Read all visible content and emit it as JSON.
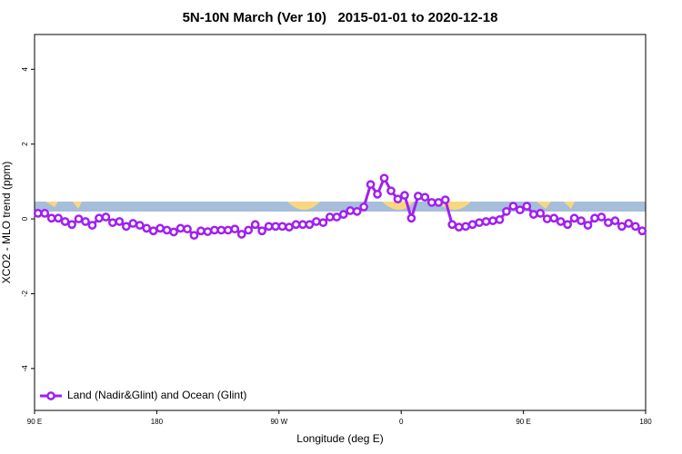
{
  "chart_data": {
    "type": "line",
    "title": "5N-10N March (Ver 10)   2015-01-01 to 2020-12-18",
    "x_label": "Longitude (deg E)",
    "y_label": "XCO2 - MLO trend (ppm)",
    "x": [
      92.5,
      97.5,
      102.5,
      107.5,
      112.5,
      117.5,
      122.5,
      127.5,
      132.5,
      137.5,
      142.5,
      147.5,
      152.5,
      157.5,
      162.5,
      167.5,
      172.5,
      177.5,
      182.5,
      187.5,
      192.5,
      197.5,
      202.5,
      207.5,
      212.5,
      217.5,
      222.5,
      227.5,
      232.5,
      237.5,
      242.5,
      247.5,
      252.5,
      257.5,
      262.5,
      267.5,
      272.5,
      277.5,
      282.5,
      287.5,
      292.5,
      297.5,
      302.5,
      307.5,
      312.5,
      317.5,
      322.5,
      327.5,
      332.5,
      337.5,
      342.5,
      347.5,
      352.5,
      357.5,
      362.5,
      367.5,
      372.5,
      377.5,
      382.5,
      387.5,
      392.5,
      397.5,
      402.5,
      407.5,
      412.5,
      417.5,
      422.5,
      427.5,
      432.5,
      437.5,
      442.5,
      447.5,
      452.5,
      457.5,
      462.5,
      467.5,
      472.5,
      477.5,
      482.5,
      487.5,
      492.5,
      497.5,
      502.5,
      507.5,
      512.5,
      517.5,
      522.5,
      527.5,
      532.5,
      537.5
    ],
    "series": [
      {
        "name": "Land (Nadir&Glint) and Ocean (Glint)",
        "color": "#a020f0",
        "values": [
          0.15,
          0.15,
          0.02,
          0.02,
          -0.07,
          -0.15,
          0,
          -0.07,
          -0.17,
          0.02,
          0.05,
          -0.1,
          -0.07,
          -0.2,
          -0.12,
          -0.17,
          -0.25,
          -0.32,
          -0.25,
          -0.3,
          -0.35,
          -0.25,
          -0.27,
          -0.44,
          -0.32,
          -0.34,
          -0.3,
          -0.3,
          -0.3,
          -0.27,
          -0.41,
          -0.3,
          -0.15,
          -0.32,
          -0.2,
          -0.2,
          -0.2,
          -0.22,
          -0.15,
          -0.15,
          -0.15,
          -0.07,
          -0.1,
          0.05,
          0.05,
          0.12,
          0.22,
          0.2,
          0.32,
          0.92,
          0.66,
          1.09,
          0.75,
          0.53,
          0.63,
          0.02,
          0.61,
          0.58,
          0.44,
          0.44,
          0.51,
          -0.15,
          -0.22,
          -0.2,
          -0.15,
          -0.1,
          -0.07,
          -0.05,
          -0.02,
          0.2,
          0.34,
          0.24,
          0.34,
          0.12,
          0.15,
          0,
          0.02,
          -0.07,
          -0.15,
          0.02,
          -0.05,
          -0.17,
          0.02,
          0.05,
          -0.1,
          -0.05,
          -0.2,
          -0.12,
          -0.2,
          -0.32
        ]
      }
    ],
    "xlim": [
      90,
      540
    ],
    "xticks": [
      {
        "value": 90,
        "label": "90 E"
      },
      180,
      {
        "value": 270,
        "label": "90 W"
      },
      {
        "value": 360,
        "label": "0"
      },
      {
        "value": 450,
        "label": "90 E"
      },
      {
        "value": 540,
        "label": "180"
      }
    ],
    "ylim": [
      -5.12,
      4.93
    ],
    "yticks": [
      -4,
      -2,
      0,
      2,
      4
    ],
    "legend": "bottom-left"
  }
}
